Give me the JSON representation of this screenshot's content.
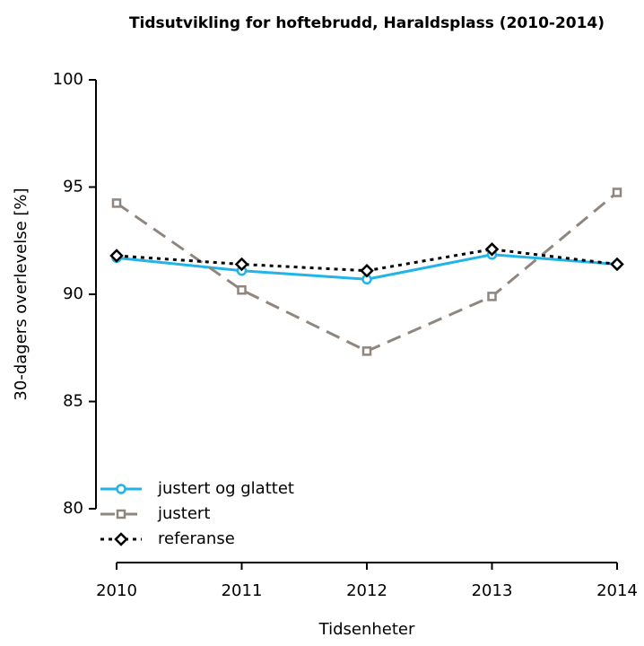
{
  "chart_data": {
    "type": "line",
    "title": "Tidsutvikling for hoftebrudd, Haraldsplass (2010-2014)",
    "xlabel": "Tidsenheter",
    "ylabel": "30-dagers overlevelse [%]",
    "x": [
      2010,
      2011,
      2012,
      2013,
      2014
    ],
    "xlim": [
      2010,
      2014
    ],
    "xticks": [
      2010,
      2011,
      2012,
      2013,
      2014
    ],
    "ylim": [
      80,
      100
    ],
    "yticks": [
      80,
      85,
      90,
      95,
      100
    ],
    "grid": false,
    "legend": "bottom-left",
    "series": [
      {
        "name": "justert og glattet",
        "color": "#22b4e6",
        "linestyle": "solid",
        "marker": "circle",
        "values": [
          91.7,
          91.1,
          90.7,
          91.85,
          91.4
        ]
      },
      {
        "name": "justert",
        "color": "#8f8680",
        "linestyle": "dashed",
        "marker": "square",
        "values": [
          94.25,
          90.2,
          87.35,
          89.9,
          94.75
        ]
      },
      {
        "name": "referanse",
        "color": "#000000",
        "linestyle": "dotted",
        "marker": "diamond",
        "values": [
          91.8,
          91.4,
          91.1,
          92.1,
          91.4
        ]
      }
    ]
  }
}
